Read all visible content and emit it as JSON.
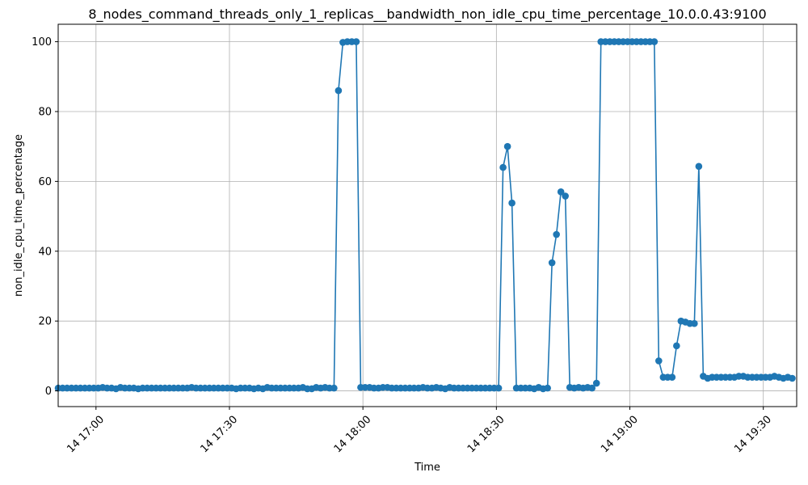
{
  "chart_data": {
    "type": "line",
    "title": "8_nodes_command_threads_only_1_replicas__bandwidth_non_idle_cpu_time_percentage_10.0.0.43:9100",
    "xlabel": "Time",
    "ylabel": "non_idle_cpu_time_percentage",
    "ylim": [
      -4.5,
      105
    ],
    "xlim": [
      "2024-01-14T16:51:30",
      "2024-01-14T19:37:30"
    ],
    "y_ticks": [
      0,
      20,
      40,
      60,
      80,
      100
    ],
    "x_ticks": [
      {
        "t": "2024-01-14T17:00:00",
        "label": "14 17:00"
      },
      {
        "t": "2024-01-14T17:30:00",
        "label": "14 17:30"
      },
      {
        "t": "2024-01-14T18:00:00",
        "label": "14 18:00"
      },
      {
        "t": "2024-01-14T18:30:00",
        "label": "14 18:30"
      },
      {
        "t": "2024-01-14T19:00:00",
        "label": "14 19:00"
      },
      {
        "t": "2024-01-14T19:30:00",
        "label": "14 19:30"
      }
    ],
    "grid": true,
    "line_color": "#1f77b4",
    "marker": "circle",
    "start": "2024-01-14T16:51:30",
    "step_seconds": 60,
    "values": [
      0.8,
      0.8,
      0.8,
      0.8,
      0.8,
      0.8,
      0.8,
      0.8,
      0.8,
      0.8,
      1.0,
      0.8,
      0.8,
      0.6,
      1.0,
      0.8,
      0.8,
      0.8,
      0.6,
      0.8,
      0.8,
      0.8,
      0.8,
      0.8,
      0.8,
      0.8,
      0.8,
      0.8,
      0.8,
      0.8,
      1.0,
      0.8,
      0.8,
      0.8,
      0.8,
      0.8,
      0.8,
      0.8,
      0.8,
      0.8,
      0.6,
      0.8,
      0.8,
      0.8,
      0.6,
      0.8,
      0.6,
      1.0,
      0.8,
      0.8,
      0.8,
      0.8,
      0.8,
      0.8,
      0.8,
      1.0,
      0.6,
      0.6,
      1.0,
      0.8,
      1.0,
      0.8,
      0.8,
      86.0,
      99.8,
      100.0,
      100.0,
      100.0,
      1.0,
      1.0,
      1.0,
      0.8,
      0.8,
      1.0,
      1.0,
      0.8,
      0.8,
      0.8,
      0.8,
      0.8,
      0.8,
      0.8,
      1.0,
      0.8,
      0.8,
      1.0,
      0.8,
      0.6,
      1.0,
      0.8,
      0.8,
      0.8,
      0.8,
      0.8,
      0.8,
      0.8,
      0.8,
      0.8,
      0.8,
      0.8,
      64.0,
      70.0,
      53.8,
      0.8,
      0.8,
      0.8,
      0.8,
      0.6,
      1.0,
      0.6,
      0.8,
      36.7,
      44.8,
      57.0,
      55.8,
      1.0,
      0.8,
      1.0,
      0.8,
      1.0,
      0.8,
      2.2,
      100.0,
      100.0,
      100.0,
      100.0,
      100.0,
      100.0,
      100.0,
      100.0,
      100.0,
      100.0,
      100.0,
      100.0,
      100.0,
      8.6,
      3.9,
      3.9,
      3.9,
      12.9,
      20.0,
      19.7,
      19.3,
      19.3,
      64.3,
      4.2,
      3.6,
      3.9,
      3.9,
      3.9,
      3.9,
      3.9,
      3.9,
      4.2,
      4.2,
      3.9,
      3.9,
      3.9,
      3.9,
      3.9,
      3.9,
      4.2,
      3.9,
      3.6,
      3.9,
      3.6
    ]
  }
}
